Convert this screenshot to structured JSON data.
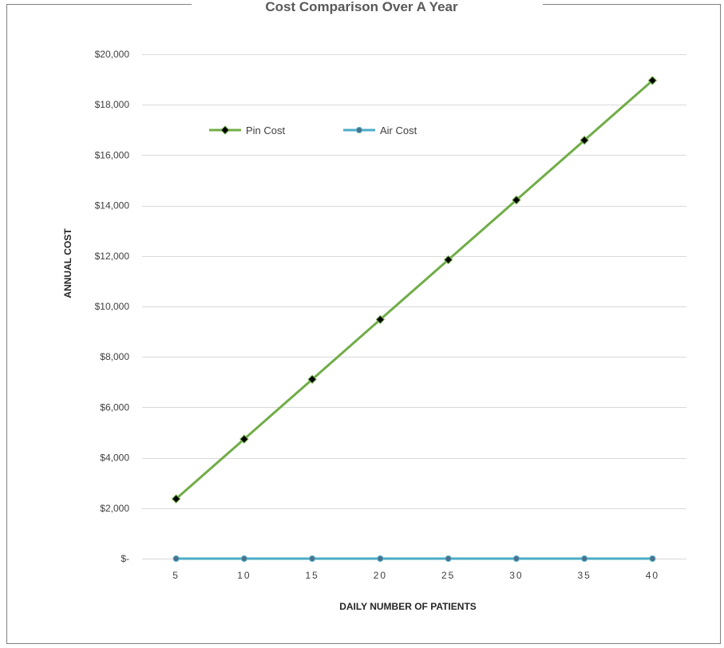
{
  "chart_data": {
    "type": "line",
    "title": "Cost Comparison Over A Year",
    "xlabel": "DAILY NUMBER OF PATIENTS",
    "ylabel": "ANNUAL COST",
    "x": [
      5,
      10,
      15,
      20,
      25,
      30,
      35,
      40
    ],
    "x_tick_labels": [
      "5",
      "10",
      "15",
      "20",
      "25",
      "30",
      "35",
      "40"
    ],
    "ylim": [
      0,
      20000
    ],
    "y_ticks": [
      0,
      2000,
      4000,
      6000,
      8000,
      10000,
      12000,
      14000,
      16000,
      18000,
      20000
    ],
    "y_tick_labels": [
      "$-",
      "$2,000",
      "$4,000",
      "$6,000",
      "$8,000",
      "$10,000",
      "$12,000",
      "$14,000",
      "$16,000",
      "$18,000",
      "$20,000"
    ],
    "grid": true,
    "legend_position": "top-left",
    "series": [
      {
        "name": "Pin Cost",
        "color": "#70ad47",
        "marker": "diamond",
        "marker_color": "#000000",
        "values": [
          2370,
          4740,
          7110,
          9480,
          11850,
          14220,
          16590,
          18960
        ]
      },
      {
        "name": "Air Cost",
        "color": "#4bacc6",
        "marker": "circle",
        "marker_color": "#4f6f8a",
        "values": [
          0,
          0,
          0,
          0,
          0,
          0,
          0,
          0
        ]
      }
    ]
  }
}
